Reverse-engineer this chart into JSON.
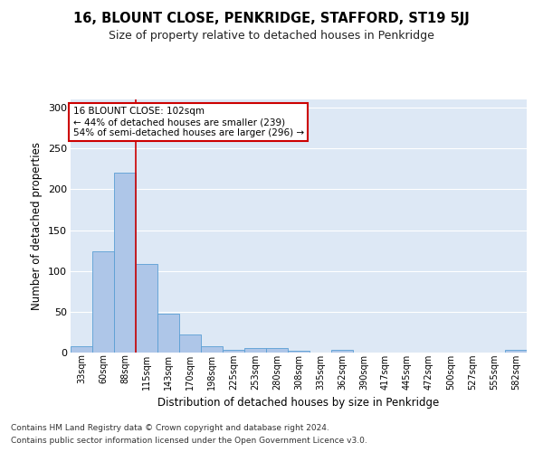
{
  "title": "16, BLOUNT CLOSE, PENKRIDGE, STAFFORD, ST19 5JJ",
  "subtitle": "Size of property relative to detached houses in Penkridge",
  "xlabel": "Distribution of detached houses by size in Penkridge",
  "ylabel": "Number of detached properties",
  "bar_color": "#aec6e8",
  "bar_edge_color": "#5a9fd4",
  "background_color": "#dde8f5",
  "grid_color": "#ffffff",
  "categories": [
    "33sqm",
    "60sqm",
    "88sqm",
    "115sqm",
    "143sqm",
    "170sqm",
    "198sqm",
    "225sqm",
    "253sqm",
    "280sqm",
    "308sqm",
    "335sqm",
    "362sqm",
    "390sqm",
    "417sqm",
    "445sqm",
    "472sqm",
    "500sqm",
    "527sqm",
    "555sqm",
    "582sqm"
  ],
  "values": [
    8,
    124,
    220,
    108,
    48,
    22,
    8,
    3,
    5,
    5,
    2,
    0,
    3,
    0,
    0,
    0,
    0,
    0,
    0,
    0,
    3
  ],
  "ylim": [
    0,
    310
  ],
  "yticks": [
    0,
    50,
    100,
    150,
    200,
    250,
    300
  ],
  "red_line_x": 2.5,
  "annotation_title": "16 BLOUNT CLOSE: 102sqm",
  "annotation_line1": "← 44% of detached houses are smaller (239)",
  "annotation_line2": "54% of semi-detached houses are larger (296) →",
  "annotation_box_color": "#ffffff",
  "annotation_box_edge": "#cc0000",
  "red_line_color": "#cc0000",
  "footnote1": "Contains HM Land Registry data © Crown copyright and database right 2024.",
  "footnote2": "Contains public sector information licensed under the Open Government Licence v3.0."
}
